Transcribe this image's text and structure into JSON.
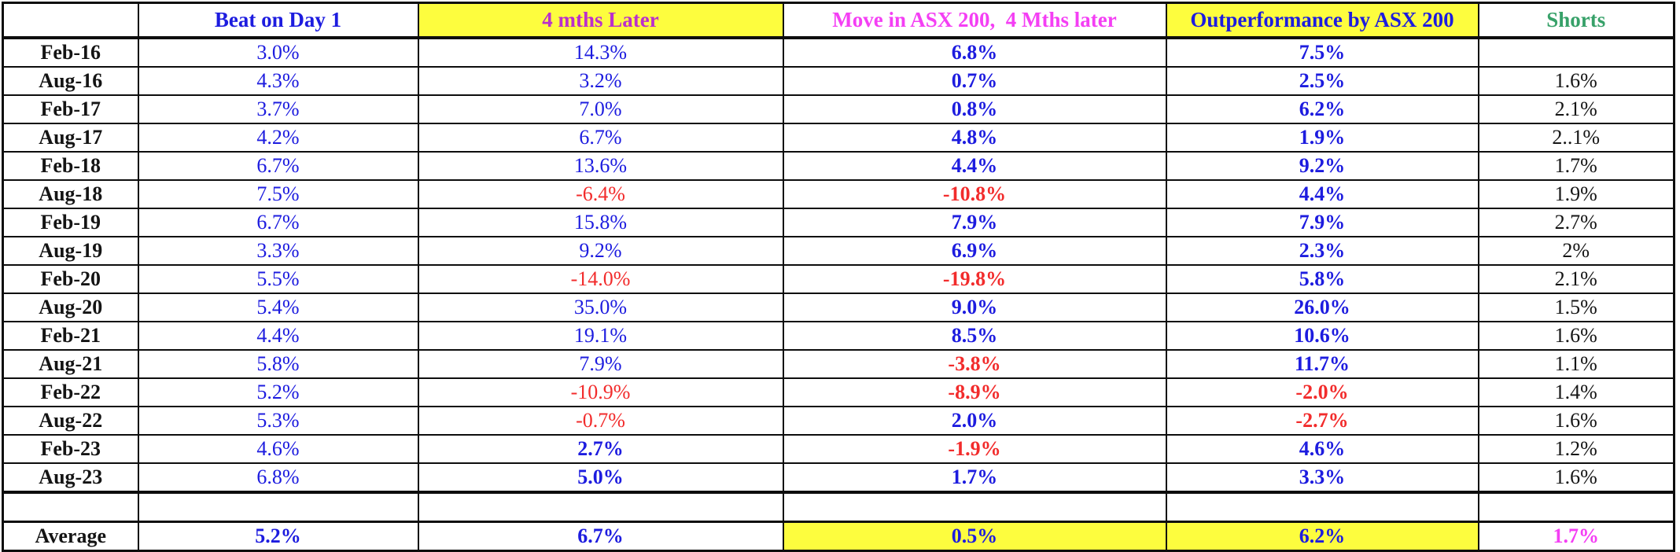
{
  "colors": {
    "value_blue": "#1d1cdf",
    "value_red": "#f22c2c",
    "value_black": "#161616",
    "header_purple": "#bb2fcc",
    "header_pink_magenta": "#f43ff4",
    "header_green": "#37a169",
    "highlight_yellow": "#fdfd3e",
    "grid_black": "#0d0d0d"
  },
  "table": {
    "headers": [
      {
        "label": "",
        "color": "black",
        "bg": "white"
      },
      {
        "label": "Beat on Day 1",
        "color": "blue",
        "bg": "white"
      },
      {
        "label": "4 mths Later",
        "color": "purple",
        "bg": "yellow"
      },
      {
        "label": "Move in ASX 200,  4 Mths later",
        "color": "magenta",
        "bg": "white"
      },
      {
        "label": "Outperformance by ASX 200",
        "color": "blue",
        "bg": "yellow"
      },
      {
        "label": "Shorts",
        "color": "green",
        "bg": "white"
      }
    ],
    "rows": [
      {
        "label": "Feb-16",
        "cells": [
          {
            "text": "3.0%",
            "color": "blue"
          },
          {
            "text": "14.3%",
            "color": "blue"
          },
          {
            "text": "6.8%",
            "color": "blue",
            "bold": true
          },
          {
            "text": "7.5%",
            "color": "blue",
            "bold": true
          },
          {
            "text": "",
            "color": "black"
          }
        ]
      },
      {
        "label": "Aug-16",
        "cells": [
          {
            "text": "4.3%",
            "color": "blue"
          },
          {
            "text": "3.2%",
            "color": "blue"
          },
          {
            "text": "0.7%",
            "color": "blue",
            "bold": true
          },
          {
            "text": "2.5%",
            "color": "blue",
            "bold": true
          },
          {
            "text": "1.6%",
            "color": "black"
          }
        ]
      },
      {
        "label": "Feb-17",
        "cells": [
          {
            "text": "3.7%",
            "color": "blue"
          },
          {
            "text": "7.0%",
            "color": "blue"
          },
          {
            "text": "0.8%",
            "color": "blue",
            "bold": true
          },
          {
            "text": "6.2%",
            "color": "blue",
            "bold": true
          },
          {
            "text": "2.1%",
            "color": "black"
          }
        ]
      },
      {
        "label": "Aug-17",
        "cells": [
          {
            "text": "4.2%",
            "color": "blue"
          },
          {
            "text": "6.7%",
            "color": "blue"
          },
          {
            "text": "4.8%",
            "color": "blue",
            "bold": true
          },
          {
            "text": "1.9%",
            "color": "blue",
            "bold": true
          },
          {
            "text": "2..1%",
            "color": "black"
          }
        ]
      },
      {
        "label": "Feb-18",
        "cells": [
          {
            "text": "6.7%",
            "color": "blue"
          },
          {
            "text": "13.6%",
            "color": "blue"
          },
          {
            "text": "4.4%",
            "color": "blue",
            "bold": true
          },
          {
            "text": "9.2%",
            "color": "blue",
            "bold": true
          },
          {
            "text": "1.7%",
            "color": "black"
          }
        ]
      },
      {
        "label": "Aug-18",
        "cells": [
          {
            "text": "7.5%",
            "color": "blue"
          },
          {
            "text": "-6.4%",
            "color": "red"
          },
          {
            "text": "-10.8%",
            "color": "red",
            "bold": true
          },
          {
            "text": "4.4%",
            "color": "blue",
            "bold": true
          },
          {
            "text": "1.9%",
            "color": "black"
          }
        ]
      },
      {
        "label": "Feb-19",
        "cells": [
          {
            "text": "6.7%",
            "color": "blue"
          },
          {
            "text": "15.8%",
            "color": "blue"
          },
          {
            "text": "7.9%",
            "color": "blue",
            "bold": true
          },
          {
            "text": "7.9%",
            "color": "blue",
            "bold": true
          },
          {
            "text": "2.7%",
            "color": "black"
          }
        ]
      },
      {
        "label": "Aug-19",
        "cells": [
          {
            "text": "3.3%",
            "color": "blue"
          },
          {
            "text": "9.2%",
            "color": "blue"
          },
          {
            "text": "6.9%",
            "color": "blue",
            "bold": true
          },
          {
            "text": "2.3%",
            "color": "blue",
            "bold": true
          },
          {
            "text": "2%",
            "color": "black"
          }
        ]
      },
      {
        "label": "Feb-20",
        "cells": [
          {
            "text": "5.5%",
            "color": "blue"
          },
          {
            "text": "-14.0%",
            "color": "red"
          },
          {
            "text": "-19.8%",
            "color": "red",
            "bold": true
          },
          {
            "text": "5.8%",
            "color": "blue",
            "bold": true
          },
          {
            "text": "2.1%",
            "color": "black"
          }
        ]
      },
      {
        "label": "Aug-20",
        "cells": [
          {
            "text": "5.4%",
            "color": "blue"
          },
          {
            "text": "35.0%",
            "color": "blue"
          },
          {
            "text": "9.0%",
            "color": "blue",
            "bold": true
          },
          {
            "text": "26.0%",
            "color": "blue",
            "bold": true
          },
          {
            "text": "1.5%",
            "color": "black"
          }
        ]
      },
      {
        "label": "Feb-21",
        "cells": [
          {
            "text": "4.4%",
            "color": "blue"
          },
          {
            "text": "19.1%",
            "color": "blue"
          },
          {
            "text": "8.5%",
            "color": "blue",
            "bold": true
          },
          {
            "text": "10.6%",
            "color": "blue",
            "bold": true
          },
          {
            "text": "1.6%",
            "color": "black"
          }
        ]
      },
      {
        "label": "Aug-21",
        "cells": [
          {
            "text": "5.8%",
            "color": "blue"
          },
          {
            "text": "7.9%",
            "color": "blue"
          },
          {
            "text": "-3.8%",
            "color": "red",
            "bold": true
          },
          {
            "text": "11.7%",
            "color": "blue",
            "bold": true
          },
          {
            "text": "1.1%",
            "color": "black"
          }
        ]
      },
      {
        "label": "Feb-22",
        "cells": [
          {
            "text": "5.2%",
            "color": "blue"
          },
          {
            "text": "-10.9%",
            "color": "red"
          },
          {
            "text": "-8.9%",
            "color": "red",
            "bold": true
          },
          {
            "text": "-2.0%",
            "color": "red",
            "bold": true
          },
          {
            "text": "1.4%",
            "color": "black"
          }
        ]
      },
      {
        "label": "Aug-22",
        "cells": [
          {
            "text": "5.3%",
            "color": "blue"
          },
          {
            "text": "-0.7%",
            "color": "red"
          },
          {
            "text": "2.0%",
            "color": "blue",
            "bold": true
          },
          {
            "text": "-2.7%",
            "color": "red",
            "bold": true
          },
          {
            "text": "1.6%",
            "color": "black"
          }
        ]
      },
      {
        "label": "Feb-23",
        "cells": [
          {
            "text": "4.6%",
            "color": "blue"
          },
          {
            "text": "2.7%",
            "color": "blue",
            "bold": true
          },
          {
            "text": "-1.9%",
            "color": "red",
            "bold": true
          },
          {
            "text": "4.6%",
            "color": "blue",
            "bold": true
          },
          {
            "text": "1.2%",
            "color": "black"
          }
        ]
      },
      {
        "label": "Aug-23",
        "cells": [
          {
            "text": "6.8%",
            "color": "blue"
          },
          {
            "text": "5.0%",
            "color": "blue",
            "bold": true
          },
          {
            "text": "1.7%",
            "color": "blue",
            "bold": true
          },
          {
            "text": "3.3%",
            "color": "blue",
            "bold": true
          },
          {
            "text": "1.6%",
            "color": "black"
          }
        ]
      },
      {
        "label": "",
        "blank": true,
        "cells": [
          {
            "text": ""
          },
          {
            "text": ""
          },
          {
            "text": ""
          },
          {
            "text": ""
          },
          {
            "text": ""
          }
        ]
      },
      {
        "label": "Average",
        "average": true,
        "cells": [
          {
            "text": "5.2%",
            "color": "blue",
            "bold": true
          },
          {
            "text": "6.7%",
            "color": "blue",
            "bold": true
          },
          {
            "text": "0.5%",
            "color": "blue",
            "bold": true,
            "bg": "yellow"
          },
          {
            "text": "6.2%",
            "color": "blue",
            "bold": true,
            "bg": "yellow"
          },
          {
            "text": "1.7%",
            "color": "magenta",
            "bold": true
          }
        ]
      }
    ]
  },
  "chart_data": {
    "type": "table",
    "columns": [
      "",
      "Beat on Day 1",
      "4 mths Later",
      "Move in ASX 200,  4 Mths later",
      "Outperformance by ASX 200",
      "Shorts"
    ],
    "rows": [
      [
        "Feb-16",
        "3.0%",
        "14.3%",
        "6.8%",
        "7.5%",
        ""
      ],
      [
        "Aug-16",
        "4.3%",
        "3.2%",
        "0.7%",
        "2.5%",
        "1.6%"
      ],
      [
        "Feb-17",
        "3.7%",
        "7.0%",
        "0.8%",
        "6.2%",
        "2.1%"
      ],
      [
        "Aug-17",
        "4.2%",
        "6.7%",
        "4.8%",
        "1.9%",
        "2..1%"
      ],
      [
        "Feb-18",
        "6.7%",
        "13.6%",
        "4.4%",
        "9.2%",
        "1.7%"
      ],
      [
        "Aug-18",
        "7.5%",
        "-6.4%",
        "-10.8%",
        "4.4%",
        "1.9%"
      ],
      [
        "Feb-19",
        "6.7%",
        "15.8%",
        "7.9%",
        "7.9%",
        "2.7%"
      ],
      [
        "Aug-19",
        "3.3%",
        "9.2%",
        "6.9%",
        "2.3%",
        "2%"
      ],
      [
        "Feb-20",
        "5.5%",
        "-14.0%",
        "-19.8%",
        "5.8%",
        "2.1%"
      ],
      [
        "Aug-20",
        "5.4%",
        "35.0%",
        "9.0%",
        "26.0%",
        "1.5%"
      ],
      [
        "Feb-21",
        "4.4%",
        "19.1%",
        "8.5%",
        "10.6%",
        "1.6%"
      ],
      [
        "Aug-21",
        "5.8%",
        "7.9%",
        "-3.8%",
        "11.7%",
        "1.1%"
      ],
      [
        "Feb-22",
        "5.2%",
        "-10.9%",
        "-8.9%",
        "-2.0%",
        "1.4%"
      ],
      [
        "Aug-22",
        "5.3%",
        "-0.7%",
        "2.0%",
        "-2.7%",
        "1.6%"
      ],
      [
        "Feb-23",
        "4.6%",
        "2.7%",
        "-1.9%",
        "4.6%",
        "1.2%"
      ],
      [
        "Aug-23",
        "6.8%",
        "5.0%",
        "1.7%",
        "3.3%",
        "1.6%"
      ],
      [
        "",
        "",
        "",
        "",
        "",
        ""
      ],
      [
        "Average",
        "5.2%",
        "6.7%",
        "0.5%",
        "6.2%",
        "1.7%"
      ]
    ],
    "notes": "Negative values rendered red; positive values blue; Shorts column black; Average-row Move/Outperformance cells highlighted yellow; Average Shorts value magenta."
  }
}
